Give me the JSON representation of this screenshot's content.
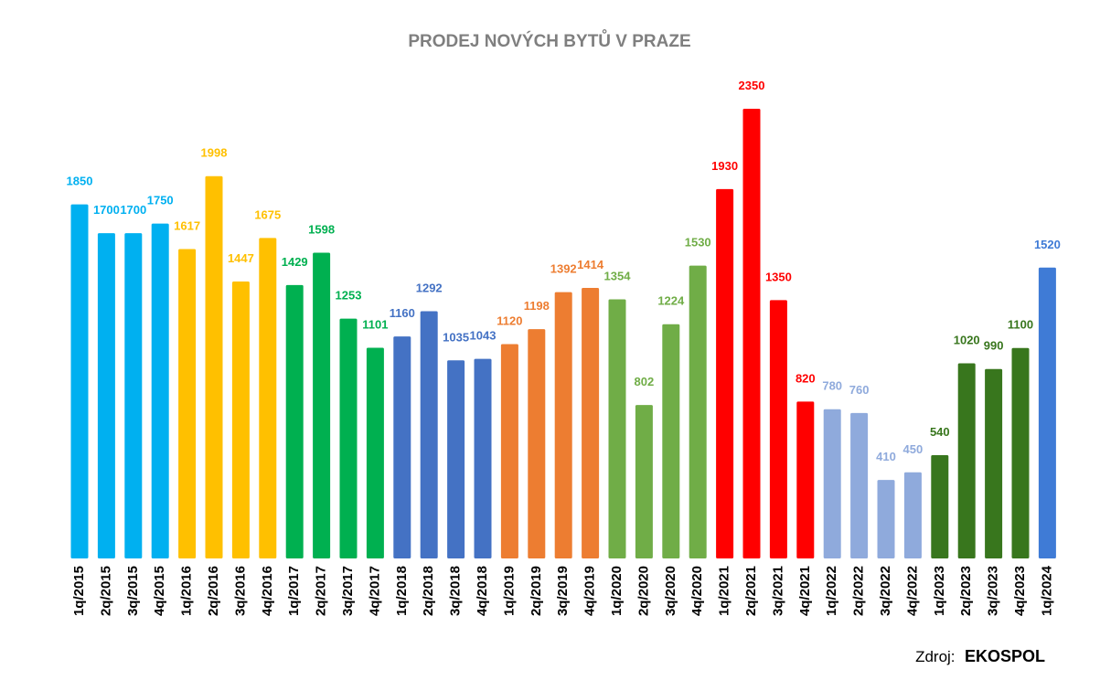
{
  "chart_data": {
    "type": "bar",
    "title": "PRODEJ NOVÝCH BYTŮ V PRAZE",
    "xlabel": "",
    "ylabel": "",
    "ylim": [
      0,
      2350
    ],
    "grid": false,
    "legend": "none",
    "categories": [
      "1q/2015",
      "2q/2015",
      "3q/2015",
      "4q/2015",
      "1q/2016",
      "2q/2016",
      "3q/2016",
      "4q/2016",
      "1q/2017",
      "2q/2017",
      "3q/2017",
      "4q/2017",
      "1q/2018",
      "2q/2018",
      "3q/2018",
      "4q/2018",
      "1q/2019",
      "2q/2019",
      "3q/2019",
      "4q/2019",
      "1q/2020",
      "2q/2020",
      "3q/2020",
      "4q/2020",
      "1q/2021",
      "2q/2021",
      "3q/2021",
      "4q/2021",
      "1q/2022",
      "2q/2022",
      "3q/2022",
      "4q/2022",
      "1q/2023",
      "2q/2023",
      "3q/2023",
      "4q/2023",
      "1q/2024"
    ],
    "values": [
      1850,
      1700,
      1700,
      1750,
      1617,
      1998,
      1447,
      1675,
      1429,
      1598,
      1253,
      1101,
      1160,
      1292,
      1035,
      1043,
      1120,
      1198,
      1392,
      1414,
      1354,
      802,
      1224,
      1530,
      1930,
      2350,
      1350,
      820,
      780,
      760,
      410,
      450,
      540,
      1020,
      990,
      1100,
      1520
    ],
    "year_colors": {
      "2015": "#00b0f0",
      "2016": "#ffc000",
      "2017": "#00b050",
      "2018": "#4472c4",
      "2019": "#ed7d31",
      "2020": "#70ad47",
      "2021": "#ff0000",
      "2022": "#8faadc",
      "2023": "#38761d",
      "2024": "#3f7bd6"
    }
  },
  "source": {
    "prefix": "Zdroj:",
    "name": "EKOSPOL"
  }
}
